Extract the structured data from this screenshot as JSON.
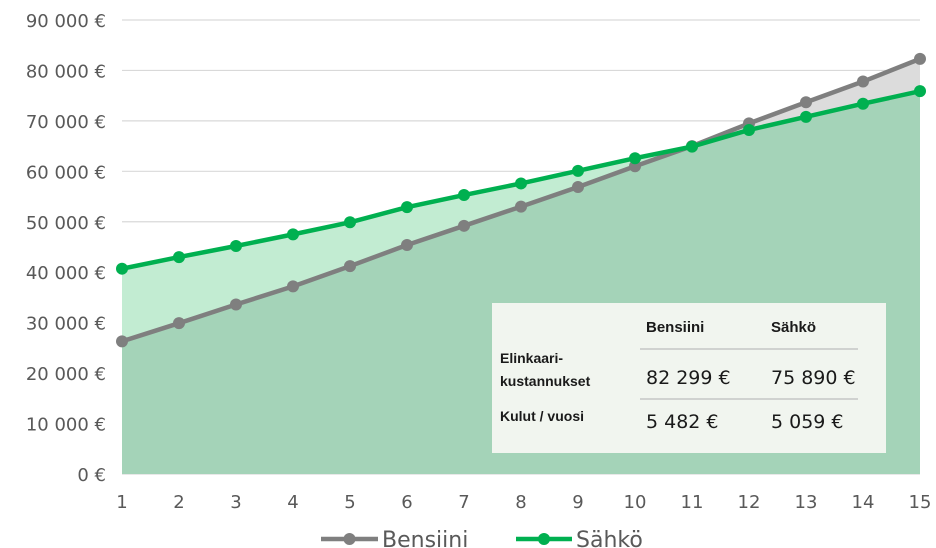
{
  "chart_data": {
    "type": "area",
    "title": "",
    "xlabel": "",
    "ylabel": "",
    "x": [
      1,
      2,
      3,
      4,
      5,
      6,
      7,
      8,
      9,
      10,
      11,
      12,
      13,
      14,
      15
    ],
    "ylim": [
      0,
      90000
    ],
    "ytick_labels": [
      "0 €",
      "10 000 €",
      "20 000 €",
      "30 000 €",
      "40 000 €",
      "50 000 €",
      "60 000 €",
      "70 000 €",
      "80 000 €",
      "90 000 €"
    ],
    "grid": true,
    "legend_position": "bottom",
    "series": [
      {
        "name": "Bensiini",
        "color": "#7f7f7f",
        "fill": "#dcdcdc",
        "values": [
          26300,
          29900,
          33600,
          37200,
          41200,
          45400,
          49200,
          53000,
          56900,
          61000,
          65000,
          69500,
          73700,
          77800,
          82299
        ]
      },
      {
        "name": "Sähkö",
        "color": "#00b050",
        "fill": "#c2ecd2",
        "values": [
          40700,
          43000,
          45200,
          47500,
          49900,
          52900,
          55300,
          57600,
          60100,
          62600,
          64900,
          68200,
          70800,
          73400,
          75890
        ]
      }
    ],
    "overlap_fill": "#a4d3b8",
    "summary_table": {
      "headers": [
        "",
        "Bensiini",
        "Sähkö"
      ],
      "rows": [
        {
          "label_lines": [
            "Elinkaari-",
            "kustannukset"
          ],
          "values": [
            "82 299 €",
            "75 890 €"
          ]
        },
        {
          "label_lines": [
            "Kulut / vuosi"
          ],
          "values": [
            "5 482 €",
            "5 059 €"
          ]
        }
      ]
    }
  }
}
